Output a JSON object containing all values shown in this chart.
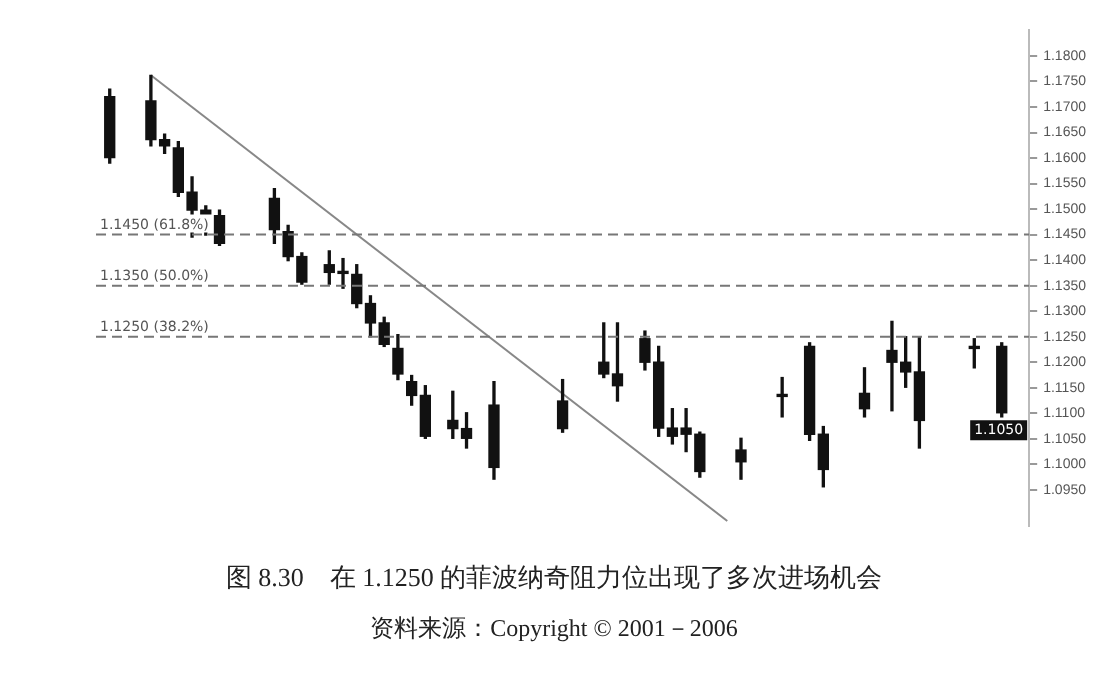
{
  "chart_data": {
    "type": "candlestick",
    "title": "图 8.30　在 1.1250 的菲波纳奇阻力位出现了多次进场机会",
    "annotations": [
      {
        "text": "1.1050",
        "y": 1.1067
      },
      "资料来源：Copyright © 2001－2006"
    ],
    "categories": [
      null,
      null,
      null,
      null,
      null,
      null,
      null,
      null,
      null,
      null,
      null,
      null,
      null,
      null,
      null,
      null,
      null,
      null,
      null,
      null,
      null,
      null,
      null,
      null,
      null,
      null,
      null,
      null,
      null,
      null,
      null,
      null,
      null,
      null,
      null,
      null,
      null,
      null,
      null,
      null,
      null,
      null,
      null,
      null,
      null,
      null,
      null,
      null,
      null,
      null,
      null,
      null,
      null,
      null,
      null,
      null,
      null,
      null,
      null,
      null,
      null,
      null,
      null,
      null,
      null,
      null,
      null
    ],
    "color": "#111111",
    "ohlc": [
      [
        1.172,
        1.1735,
        1.159,
        1.1601
      ],
      null,
      null,
      [
        1.1712,
        1.1762,
        1.1624,
        1.1636
      ],
      [
        1.1636,
        1.1647,
        1.1609,
        1.1624
      ],
      [
        1.162,
        1.1632,
        1.1525,
        1.1533
      ],
      [
        1.1533,
        1.1563,
        1.1445,
        1.1498
      ],
      [
        1.1498,
        1.1506,
        1.1449,
        1.1487
      ],
      [
        1.1487,
        1.1498,
        1.1429,
        1.1433
      ],
      null,
      null,
      null,
      [
        1.1521,
        1.154,
        1.1433,
        1.146
      ],
      [
        1.1456,
        1.1468,
        1.1399,
        1.1407
      ],
      [
        1.1407,
        1.1414,
        1.1353,
        1.1357
      ],
      null,
      [
        1.1391,
        1.1418,
        1.1353,
        1.1376
      ],
      [
        1.1376,
        1.1403,
        1.1345,
        1.1374
      ],
      [
        1.1372,
        1.1391,
        1.1307,
        1.1315
      ],
      [
        1.1315,
        1.133,
        1.125,
        1.1277
      ],
      [
        1.1277,
        1.1288,
        1.1231,
        1.1235
      ],
      [
        1.1227,
        1.1254,
        1.1166,
        1.1177
      ],
      [
        1.1162,
        1.1174,
        1.1116,
        1.1135
      ],
      [
        1.1135,
        1.1154,
        1.1051,
        1.1055
      ],
      null,
      [
        1.1086,
        1.1143,
        1.1051,
        1.107
      ],
      [
        1.107,
        1.1101,
        1.1032,
        1.1051
      ],
      null,
      [
        1.1116,
        1.1162,
        1.0971,
        1.0994
      ],
      null,
      null,
      null,
      null,
      [
        1.1124,
        1.1166,
        1.1063,
        1.107
      ],
      null,
      null,
      [
        1.12,
        1.1277,
        1.117,
        1.1177
      ],
      [
        1.1177,
        1.1277,
        1.1124,
        1.1154
      ],
      null,
      [
        1.1246,
        1.1261,
        1.1185,
        1.12
      ],
      [
        1.12,
        1.1231,
        1.1055,
        1.1071
      ],
      [
        1.1071,
        1.1109,
        1.104,
        1.1055
      ],
      [
        1.1071,
        1.1109,
        1.1025,
        1.1059
      ],
      [
        1.1059,
        1.1063,
        1.0975,
        1.0986
      ],
      null,
      null,
      [
        1.1028,
        1.1051,
        1.0971,
        1.1005
      ],
      null,
      null,
      [
        1.1135,
        1.117,
        1.1093,
        1.1133
      ],
      null,
      [
        1.1231,
        1.1238,
        1.1047,
        1.1059
      ],
      [
        1.1059,
        1.1074,
        1.0956,
        1.099
      ],
      null,
      null,
      [
        1.1139,
        1.1189,
        1.1093,
        1.1109
      ],
      null,
      [
        1.1223,
        1.128,
        1.1105,
        1.12
      ],
      [
        1.12,
        1.125,
        1.1151,
        1.1181
      ],
      [
        1.1181,
        1.125,
        1.1032,
        1.1086
      ],
      null,
      null,
      null,
      [
        1.1231,
        1.1246,
        1.1189,
        1.1227
      ],
      null,
      [
        1.1231,
        1.1238,
        1.1093,
        1.1101
      ],
      null
    ],
    "series": [
      {
        "type": "line",
        "values": [
          null,
          null,
          null,
          1.1762,
          null,
          null,
          null,
          null,
          null,
          null,
          null,
          null,
          null,
          null,
          null,
          null,
          null,
          null,
          null,
          null,
          null,
          null,
          null,
          null,
          null,
          null,
          null,
          null,
          null,
          null,
          null,
          null,
          null,
          null,
          null,
          null,
          null,
          null,
          null,
          null,
          null,
          null,
          null,
          null,
          null,
          1.0889,
          null,
          null,
          null,
          null,
          null,
          null,
          null,
          null,
          null,
          null,
          null,
          null,
          null,
          null,
          null,
          null,
          null,
          null,
          null,
          null,
          null
        ],
        "color": "#888888"
      }
    ],
    "marker": "none",
    "ylim": [
      1.088,
      1.185
    ],
    "yticks": [
      {
        "value": 1.095,
        "label": "1.0950"
      },
      {
        "value": 1.1,
        "label": "1.1000"
      },
      {
        "value": 1.105,
        "label": "1.1050"
      },
      {
        "value": 1.11,
        "label": "1.1100"
      },
      {
        "value": 1.115,
        "label": "1.1150"
      },
      {
        "value": 1.12,
        "label": "1.1200"
      },
      {
        "value": 1.125,
        "label": "1.1250"
      },
      {
        "value": 1.13,
        "label": "1.1300"
      },
      {
        "value": 1.135,
        "label": "1.1350"
      },
      {
        "value": 1.14,
        "label": "1.1400"
      },
      {
        "value": 1.145,
        "label": "1.1450"
      },
      {
        "value": 1.15,
        "label": "1.1500"
      },
      {
        "value": 1.155,
        "label": "1.1550"
      },
      {
        "value": 1.16,
        "label": "1.1600"
      },
      {
        "value": 1.165,
        "label": "1.1650"
      },
      {
        "value": 1.17,
        "label": "1.1700"
      },
      {
        "value": 1.175,
        "label": "1.1750"
      },
      {
        "value": 1.18,
        "label": "1.1800"
      }
    ],
    "ref_lines": [
      {
        "axis": "y",
        "value": 1.145,
        "label": "1.1450 (61.8%)",
        "color": "#777777",
        "line_style": "dashed"
      },
      {
        "axis": "y",
        "value": 1.135,
        "label": "1.1350 (50.0%)",
        "color": "#777777",
        "line_style": "dashed"
      },
      {
        "axis": "y",
        "value": 1.125,
        "label": "1.1250 (38.2%)",
        "color": "#777777",
        "line_style": "dashed"
      }
    ],
    "grid": false,
    "legend": false,
    "tick_labels": "y"
  }
}
